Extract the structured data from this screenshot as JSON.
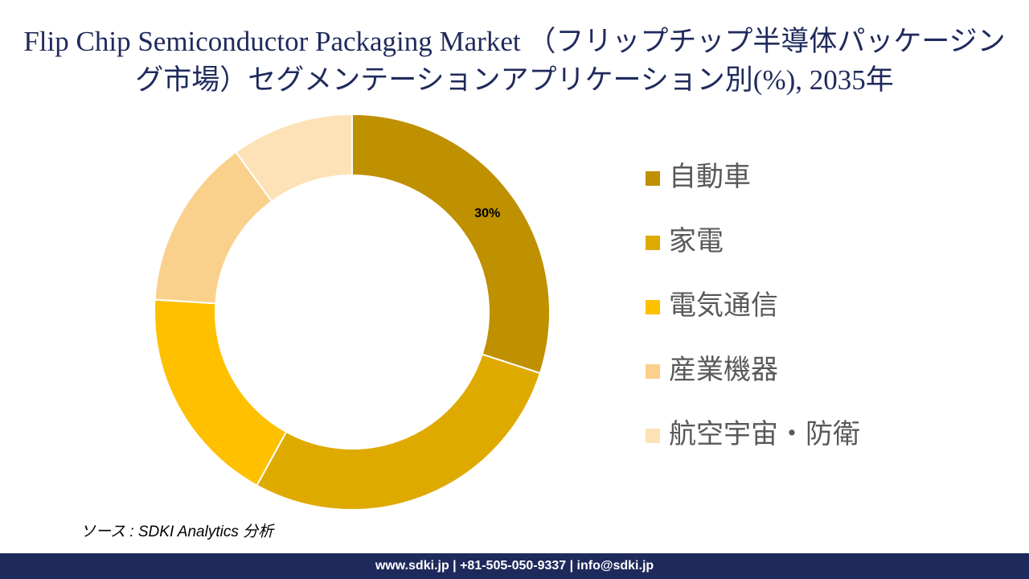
{
  "chart_data": {
    "type": "donut",
    "title": "Flip Chip Semiconductor Packaging Market （フリップチップ半導体パッケージング市場）セグメンテーションアプリケーション別(%), 2035年",
    "categories": [
      "自動車",
      "家電",
      "電気通信",
      "産業機器",
      "航空宇宙・防衛"
    ],
    "values": [
      30,
      28,
      18,
      14,
      10
    ],
    "value_labels": [
      "30%",
      null,
      null,
      null,
      null
    ],
    "colors": [
      "#BF9000",
      "#DEAA00",
      "#FFC000",
      "#FAD18C",
      "#FDE2B8"
    ],
    "legend": "right"
  },
  "source": "ソース : SDKI Analytics 分析",
  "footer": "www.sdki.jp | +81-505-050-9337 | info@sdki.jp"
}
